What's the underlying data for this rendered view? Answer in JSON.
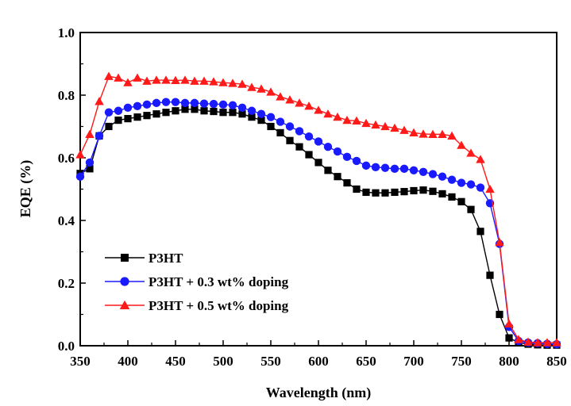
{
  "chart_data": {
    "type": "line",
    "xlabel": "Wavelength (nm)",
    "ylabel": "EQE (%)",
    "xlim": [
      350,
      850
    ],
    "ylim": [
      0.0,
      1.0
    ],
    "xticks": [
      350,
      400,
      450,
      500,
      550,
      600,
      650,
      700,
      750,
      800,
      850
    ],
    "yticks": [
      0.0,
      0.2,
      0.4,
      0.6,
      0.8,
      1.0
    ],
    "xtick_labels": [
      "350",
      "400",
      "450",
      "500",
      "550",
      "600",
      "650",
      "700",
      "750",
      "800",
      "850"
    ],
    "ytick_labels": [
      "0.0",
      "0.2",
      "0.4",
      "0.6",
      "0.8",
      "1.0"
    ],
    "grid": false,
    "legend_position": "bottom-left",
    "x": [
      350,
      360,
      370,
      380,
      390,
      400,
      410,
      420,
      430,
      440,
      450,
      460,
      470,
      480,
      490,
      500,
      510,
      520,
      530,
      540,
      550,
      560,
      570,
      580,
      590,
      600,
      610,
      620,
      630,
      640,
      650,
      660,
      670,
      680,
      690,
      700,
      710,
      720,
      730,
      740,
      750,
      760,
      770,
      780,
      790,
      800,
      810,
      820,
      830,
      840,
      850
    ],
    "series": [
      {
        "name": "P3HT",
        "color": "#000000",
        "marker": "square",
        "values": [
          0.55,
          0.565,
          0.67,
          0.7,
          0.72,
          0.725,
          0.73,
          0.735,
          0.74,
          0.745,
          0.75,
          0.755,
          0.755,
          0.75,
          0.748,
          0.745,
          0.745,
          0.74,
          0.73,
          0.72,
          0.7,
          0.68,
          0.655,
          0.635,
          0.61,
          0.585,
          0.56,
          0.54,
          0.52,
          0.5,
          0.49,
          0.488,
          0.488,
          0.49,
          0.492,
          0.495,
          0.497,
          0.493,
          0.485,
          0.475,
          0.46,
          0.435,
          0.365,
          0.225,
          0.1,
          0.025,
          0.01,
          0.005,
          0.003,
          0.002,
          0.002
        ]
      },
      {
        "name": "P3HT + 0.3 wt% doping",
        "color": "#1a1aff",
        "marker": "circle",
        "values": [
          0.54,
          0.585,
          0.67,
          0.745,
          0.75,
          0.76,
          0.765,
          0.77,
          0.775,
          0.778,
          0.778,
          0.775,
          0.775,
          0.773,
          0.772,
          0.77,
          0.768,
          0.76,
          0.75,
          0.74,
          0.73,
          0.715,
          0.7,
          0.685,
          0.668,
          0.652,
          0.635,
          0.62,
          0.603,
          0.59,
          0.575,
          0.57,
          0.568,
          0.565,
          0.565,
          0.56,
          0.555,
          0.548,
          0.54,
          0.53,
          0.52,
          0.515,
          0.505,
          0.455,
          0.325,
          0.06,
          0.015,
          0.01,
          0.008,
          0.006,
          0.005
        ]
      },
      {
        "name": "P3HT + 0.5 wt% doping",
        "color": "#ff1a1a",
        "marker": "triangle",
        "values": [
          0.61,
          0.675,
          0.78,
          0.86,
          0.855,
          0.84,
          0.855,
          0.845,
          0.848,
          0.848,
          0.847,
          0.848,
          0.845,
          0.845,
          0.843,
          0.84,
          0.838,
          0.835,
          0.825,
          0.82,
          0.81,
          0.795,
          0.785,
          0.775,
          0.765,
          0.752,
          0.74,
          0.73,
          0.72,
          0.718,
          0.71,
          0.705,
          0.7,
          0.695,
          0.688,
          0.68,
          0.676,
          0.675,
          0.675,
          0.67,
          0.64,
          0.615,
          0.595,
          0.5,
          0.33,
          0.07,
          0.02,
          0.012,
          0.01,
          0.01,
          0.01
        ]
      }
    ]
  }
}
